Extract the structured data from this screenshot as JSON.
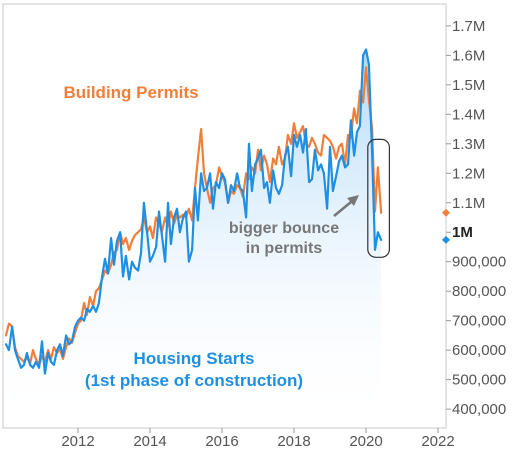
{
  "chart_data": {
    "type": "line",
    "title": "",
    "xlabel": "",
    "ylabel": "",
    "x_range": [
      2010.0,
      2022.0
    ],
    "y_range": [
      380000,
      1720000
    ],
    "x_ticks": [
      2012,
      2014,
      2016,
      2018,
      2020,
      2022
    ],
    "x_tick_labels": [
      "2012",
      "2014",
      "2016",
      "2018",
      "2020",
      "2022"
    ],
    "y_ticks": [
      400000,
      500000,
      600000,
      700000,
      800000,
      900000,
      1000000,
      1100000,
      1200000,
      1300000,
      1400000,
      1500000,
      1600000,
      1700000
    ],
    "y_tick_labels": [
      "400,000",
      "500,000",
      "600,000",
      "700,000",
      "800,000",
      "900,000",
      "1M",
      "1.1M",
      "1.2M",
      "1.3M",
      "1.4M",
      "1.5M",
      "1.6M",
      "1.7M"
    ],
    "y_axis_side": "right",
    "grid": false,
    "series": [
      {
        "name": "Building Permits",
        "color": "#f07f3c",
        "last_value_marker": 1066000,
        "points": [
          [
            2010.0,
            650000
          ],
          [
            2010.08,
            690000
          ],
          [
            2010.17,
            680000
          ],
          [
            2010.25,
            610000
          ],
          [
            2010.33,
            580000
          ],
          [
            2010.42,
            570000
          ],
          [
            2010.5,
            560000
          ],
          [
            2010.58,
            575000
          ],
          [
            2010.67,
            555000
          ],
          [
            2010.75,
            600000
          ],
          [
            2010.83,
            570000
          ],
          [
            2010.92,
            550000
          ],
          [
            2011.0,
            580000
          ],
          [
            2011.08,
            560000
          ],
          [
            2011.17,
            600000
          ],
          [
            2011.25,
            570000
          ],
          [
            2011.33,
            610000
          ],
          [
            2011.42,
            590000
          ],
          [
            2011.5,
            605000
          ],
          [
            2011.58,
            570000
          ],
          [
            2011.67,
            610000
          ],
          [
            2011.75,
            640000
          ],
          [
            2011.83,
            625000
          ],
          [
            2011.92,
            660000
          ],
          [
            2012.0,
            690000
          ],
          [
            2012.08,
            700000
          ],
          [
            2012.17,
            760000
          ],
          [
            2012.25,
            720000
          ],
          [
            2012.33,
            780000
          ],
          [
            2012.42,
            750000
          ],
          [
            2012.5,
            800000
          ],
          [
            2012.58,
            810000
          ],
          [
            2012.67,
            840000
          ],
          [
            2012.75,
            870000
          ],
          [
            2012.83,
            860000
          ],
          [
            2012.92,
            890000
          ],
          [
            2013.0,
            930000
          ],
          [
            2013.08,
            940000
          ],
          [
            2013.17,
            1000000
          ],
          [
            2013.25,
            960000
          ],
          [
            2013.33,
            980000
          ],
          [
            2013.42,
            940000
          ],
          [
            2013.5,
            970000
          ],
          [
            2013.58,
            990000
          ],
          [
            2013.67,
            1000000
          ],
          [
            2013.75,
            1010000
          ],
          [
            2013.83,
            1050000
          ],
          [
            2013.92,
            1000000
          ],
          [
            2014.0,
            1020000
          ],
          [
            2014.08,
            980000
          ],
          [
            2014.17,
            1050000
          ],
          [
            2014.25,
            1030000
          ],
          [
            2014.33,
            1000000
          ],
          [
            2014.42,
            1050000
          ],
          [
            2014.5,
            1020000
          ],
          [
            2014.58,
            1070000
          ],
          [
            2014.67,
            1030000
          ],
          [
            2014.75,
            1060000
          ],
          [
            2014.83,
            1050000
          ],
          [
            2014.92,
            1060000
          ],
          [
            2015.0,
            1050000
          ],
          [
            2015.08,
            1080000
          ],
          [
            2015.17,
            1040000
          ],
          [
            2015.25,
            1150000
          ],
          [
            2015.33,
            1250000
          ],
          [
            2015.42,
            1350000
          ],
          [
            2015.5,
            1200000
          ],
          [
            2015.58,
            1150000
          ],
          [
            2015.67,
            1100000
          ],
          [
            2015.75,
            1150000
          ],
          [
            2015.83,
            1160000
          ],
          [
            2015.92,
            1220000
          ],
          [
            2016.0,
            1190000
          ],
          [
            2016.08,
            1170000
          ],
          [
            2016.17,
            1100000
          ],
          [
            2016.25,
            1140000
          ],
          [
            2016.33,
            1130000
          ],
          [
            2016.42,
            1160000
          ],
          [
            2016.5,
            1150000
          ],
          [
            2016.58,
            1120000
          ],
          [
            2016.67,
            1200000
          ],
          [
            2016.75,
            1180000
          ],
          [
            2016.83,
            1220000
          ],
          [
            2016.92,
            1200000
          ],
          [
            2017.0,
            1280000
          ],
          [
            2017.08,
            1210000
          ],
          [
            2017.17,
            1260000
          ],
          [
            2017.25,
            1230000
          ],
          [
            2017.33,
            1170000
          ],
          [
            2017.42,
            1250000
          ],
          [
            2017.5,
            1230000
          ],
          [
            2017.58,
            1290000
          ],
          [
            2017.67,
            1230000
          ],
          [
            2017.75,
            1250000
          ],
          [
            2017.83,
            1330000
          ],
          [
            2017.92,
            1300000
          ],
          [
            2018.0,
            1370000
          ],
          [
            2018.08,
            1320000
          ],
          [
            2018.17,
            1340000
          ],
          [
            2018.25,
            1360000
          ],
          [
            2018.33,
            1300000
          ],
          [
            2018.42,
            1290000
          ],
          [
            2018.5,
            1320000
          ],
          [
            2018.58,
            1300000
          ],
          [
            2018.67,
            1270000
          ],
          [
            2018.75,
            1260000
          ],
          [
            2018.83,
            1330000
          ],
          [
            2018.92,
            1320000
          ],
          [
            2019.0,
            1310000
          ],
          [
            2019.08,
            1290000
          ],
          [
            2019.17,
            1250000
          ],
          [
            2019.25,
            1290000
          ],
          [
            2019.33,
            1300000
          ],
          [
            2019.42,
            1230000
          ],
          [
            2019.5,
            1330000
          ],
          [
            2019.58,
            1320000
          ],
          [
            2019.67,
            1420000
          ],
          [
            2019.75,
            1370000
          ],
          [
            2019.83,
            1480000
          ],
          [
            2019.92,
            1440000
          ],
          [
            2020.0,
            1560000
          ],
          [
            2020.08,
            1450000
          ],
          [
            2020.17,
            1350000
          ],
          [
            2020.25,
            1070000
          ],
          [
            2020.33,
            1220000
          ],
          [
            2020.42,
            1066000
          ]
        ]
      },
      {
        "name": "Housing Starts",
        "color": "#1f8fe3",
        "last_value_marker": 974000,
        "points": [
          [
            2010.0,
            620000
          ],
          [
            2010.08,
            600000
          ],
          [
            2010.17,
            680000
          ],
          [
            2010.25,
            600000
          ],
          [
            2010.33,
            570000
          ],
          [
            2010.42,
            540000
          ],
          [
            2010.5,
            550000
          ],
          [
            2010.58,
            590000
          ],
          [
            2010.67,
            550000
          ],
          [
            2010.75,
            540000
          ],
          [
            2010.83,
            560000
          ],
          [
            2010.92,
            540000
          ],
          [
            2011.0,
            630000
          ],
          [
            2011.08,
            520000
          ],
          [
            2011.17,
            590000
          ],
          [
            2011.25,
            560000
          ],
          [
            2011.33,
            550000
          ],
          [
            2011.42,
            600000
          ],
          [
            2011.5,
            620000
          ],
          [
            2011.58,
            580000
          ],
          [
            2011.67,
            650000
          ],
          [
            2011.75,
            620000
          ],
          [
            2011.83,
            630000
          ],
          [
            2011.92,
            680000
          ],
          [
            2012.0,
            700000
          ],
          [
            2012.08,
            710000
          ],
          [
            2012.17,
            700000
          ],
          [
            2012.25,
            740000
          ],
          [
            2012.33,
            730000
          ],
          [
            2012.42,
            750000
          ],
          [
            2012.5,
            730000
          ],
          [
            2012.58,
            760000
          ],
          [
            2012.67,
            850000
          ],
          [
            2012.75,
            910000
          ],
          [
            2012.83,
            860000
          ],
          [
            2012.92,
            980000
          ],
          [
            2013.0,
            890000
          ],
          [
            2013.08,
            970000
          ],
          [
            2013.17,
            1000000
          ],
          [
            2013.25,
            850000
          ],
          [
            2013.33,
            920000
          ],
          [
            2013.42,
            840000
          ],
          [
            2013.5,
            900000
          ],
          [
            2013.58,
            880000
          ],
          [
            2013.67,
            870000
          ],
          [
            2013.75,
            930000
          ],
          [
            2013.83,
            1100000
          ],
          [
            2013.92,
            1000000
          ],
          [
            2014.0,
            900000
          ],
          [
            2014.08,
            920000
          ],
          [
            2014.17,
            950000
          ],
          [
            2014.25,
            1070000
          ],
          [
            2014.33,
            990000
          ],
          [
            2014.42,
            900000
          ],
          [
            2014.5,
            1100000
          ],
          [
            2014.58,
            960000
          ],
          [
            2014.67,
            1050000
          ],
          [
            2014.75,
            1080000
          ],
          [
            2014.83,
            1000000
          ],
          [
            2014.92,
            1050000
          ],
          [
            2015.0,
            1070000
          ],
          [
            2015.08,
            900000
          ],
          [
            2015.17,
            940000
          ],
          [
            2015.25,
            1150000
          ],
          [
            2015.33,
            1040000
          ],
          [
            2015.42,
            1200000
          ],
          [
            2015.5,
            1140000
          ],
          [
            2015.58,
            1150000
          ],
          [
            2015.67,
            1200000
          ],
          [
            2015.75,
            1080000
          ],
          [
            2015.83,
            1170000
          ],
          [
            2015.92,
            1150000
          ],
          [
            2016.0,
            1200000
          ],
          [
            2016.08,
            1180000
          ],
          [
            2016.17,
            1100000
          ],
          [
            2016.25,
            1160000
          ],
          [
            2016.33,
            1140000
          ],
          [
            2016.42,
            1200000
          ],
          [
            2016.5,
            1150000
          ],
          [
            2016.58,
            1140000
          ],
          [
            2016.67,
            1050000
          ],
          [
            2016.75,
            1300000
          ],
          [
            2016.83,
            1140000
          ],
          [
            2016.92,
            1230000
          ],
          [
            2017.0,
            1250000
          ],
          [
            2017.08,
            1280000
          ],
          [
            2017.17,
            1150000
          ],
          [
            2017.25,
            1170000
          ],
          [
            2017.33,
            1100000
          ],
          [
            2017.42,
            1210000
          ],
          [
            2017.5,
            1150000
          ],
          [
            2017.58,
            1130000
          ],
          [
            2017.67,
            1160000
          ],
          [
            2017.75,
            1260000
          ],
          [
            2017.83,
            1290000
          ],
          [
            2017.92,
            1190000
          ],
          [
            2018.0,
            1330000
          ],
          [
            2018.08,
            1290000
          ],
          [
            2018.17,
            1330000
          ],
          [
            2018.25,
            1270000
          ],
          [
            2018.33,
            1350000
          ],
          [
            2018.42,
            1170000
          ],
          [
            2018.5,
            1180000
          ],
          [
            2018.58,
            1280000
          ],
          [
            2018.67,
            1210000
          ],
          [
            2018.75,
            1230000
          ],
          [
            2018.83,
            1200000
          ],
          [
            2018.92,
            1080000
          ],
          [
            2019.0,
            1290000
          ],
          [
            2019.08,
            1140000
          ],
          [
            2019.17,
            1190000
          ],
          [
            2019.25,
            1240000
          ],
          [
            2019.33,
            1260000
          ],
          [
            2019.42,
            1220000
          ],
          [
            2019.5,
            1230000
          ],
          [
            2019.58,
            1380000
          ],
          [
            2019.67,
            1260000
          ],
          [
            2019.75,
            1340000
          ],
          [
            2019.83,
            1360000
          ],
          [
            2019.92,
            1600000
          ],
          [
            2020.0,
            1620000
          ],
          [
            2020.08,
            1570000
          ],
          [
            2020.17,
            1270000
          ],
          [
            2020.25,
            940000
          ],
          [
            2020.33,
            1000000
          ],
          [
            2020.42,
            974000
          ]
        ]
      }
    ],
    "annotations": [
      {
        "text_lines": [
          "bigger bounce",
          "in permits"
        ],
        "points_to": [
          2020.33,
          1200000
        ],
        "color": "#777777"
      },
      {
        "text_lines": [
          "Building Permits"
        ],
        "color": "#f07f3c"
      },
      {
        "text_lines": [
          "Housing Starts",
          "(1st phase of construction)"
        ],
        "color": "#1f8fe3"
      }
    ],
    "highlight_box": {
      "x_range": [
        2020.05,
        2020.65
      ],
      "y_range": [
        915000,
        1315000
      ]
    }
  }
}
